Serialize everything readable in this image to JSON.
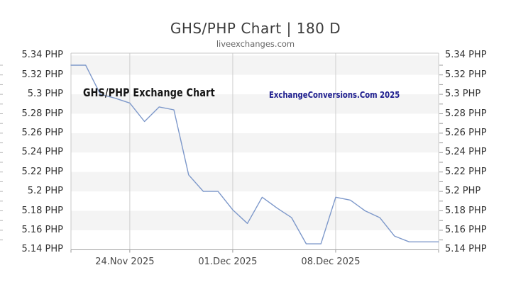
{
  "header": {
    "title": "GHS/PHP Chart | 180 D",
    "subtitle": "liveexchanges.com"
  },
  "watermarks": {
    "left": "GHS/PHP Exchange Chart",
    "right": "ExchangeConversions.Com 2025"
  },
  "colors": {
    "line": "#7d98ca",
    "band": "#f4f4f4",
    "grid": "#cfcfcf",
    "border": "#c8c8c8",
    "axis_bottom": "#a0a0a0",
    "tick": "#9a9a9a",
    "edge_tick": "#b5b5b5",
    "title": "#3a3a3a",
    "subtitle": "#666666",
    "label": "#333333",
    "watermark_dark": "#141414",
    "watermark_navy": "#1e1e8f"
  },
  "chart_data": {
    "type": "line",
    "title": "GHS/PHP Chart | 180 D",
    "ylabel_suffix": "PHP",
    "ylim": [
      5.14,
      5.34
    ],
    "grid": "weekly vertical gridlines; alternating horizontal bands per 0.02 PHP",
    "legend": "none",
    "x": [
      "20.Nov 2025",
      "21.Nov 2025",
      "22.Nov 2025",
      "23.Nov 2025",
      "24.Nov 2025",
      "25.Nov 2025",
      "26.Nov 2025",
      "27.Nov 2025",
      "28.Nov 2025",
      "29.Nov 2025",
      "30.Nov 2025",
      "01.Dec 2025",
      "02.Dec 2025",
      "03.Dec 2025",
      "04.Dec 2025",
      "05.Dec 2025",
      "06.Dec 2025",
      "07.Dec 2025",
      "08.Dec 2025",
      "09.Dec 2025",
      "10.Dec 2025",
      "11.Dec 2025",
      "12.Dec 2025",
      "13.Dec 2025",
      "14.Dec 2025",
      "15.Dec 2025"
    ],
    "values": [
      5.33,
      5.33,
      5.3,
      5.296,
      5.291,
      5.272,
      5.287,
      5.284,
      5.217,
      5.2,
      5.2,
      5.181,
      5.167,
      5.194,
      5.183,
      5.173,
      5.146,
      5.146,
      5.194,
      5.191,
      5.18,
      5.173,
      5.154,
      5.148,
      5.148,
      5.148
    ],
    "x_gridlines": [
      {
        "index": 4,
        "label": "24.Nov 2025"
      },
      {
        "index": 11,
        "label": "01.Dec 2025"
      },
      {
        "index": 18,
        "label": "08.Dec 2025"
      }
    ],
    "y_ticks": [
      {
        "value": 5.34,
        "label": "5.34 PHP"
      },
      {
        "value": 5.32,
        "label": "5.32 PHP"
      },
      {
        "value": 5.3,
        "label": "5.3 PHP"
      },
      {
        "value": 5.28,
        "label": "5.28 PHP"
      },
      {
        "value": 5.26,
        "label": "5.26 PHP"
      },
      {
        "value": 5.24,
        "label": "5.24 PHP"
      },
      {
        "value": 5.22,
        "label": "5.22 PHP"
      },
      {
        "value": 5.2,
        "label": "5.2 PHP"
      },
      {
        "value": 5.18,
        "label": "5.18 PHP"
      },
      {
        "value": 5.16,
        "label": "5.16 PHP"
      },
      {
        "value": 5.14,
        "label": "5.14 PHP"
      }
    ],
    "minor_tick_step": 0.01
  }
}
